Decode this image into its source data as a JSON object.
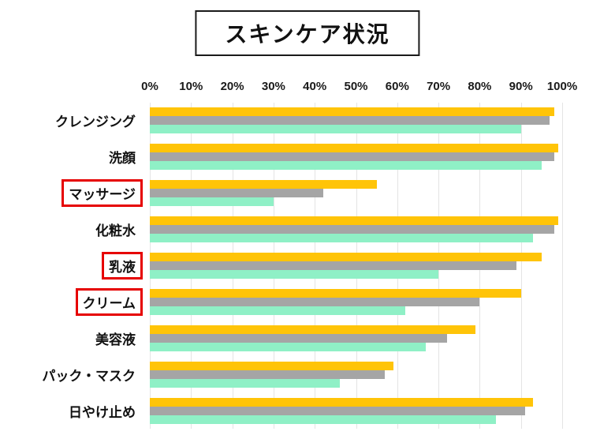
{
  "title": "スキンケア状況",
  "x_axis": {
    "tick_labels": [
      "0%",
      "10%",
      "20%",
      "30%",
      "40%",
      "50%",
      "60%",
      "70%",
      "80%",
      "90%",
      "100%"
    ]
  },
  "colors": {
    "series_yellow": "#FFC408",
    "series_gray": "#A5A5A5",
    "series_mint": "#8FF0C6",
    "highlight_box": "#E60000",
    "gridline": "#E4E4E4",
    "title_border": "#1A1A1A",
    "text": "#111111",
    "background": "#FFFFFF"
  },
  "chart_data": {
    "type": "bar",
    "orientation": "horizontal",
    "title": "スキンケア状況",
    "xlabel": "",
    "ylabel": "",
    "xlim": [
      0,
      100
    ],
    "x_tick_step": 10,
    "grid": true,
    "legend": false,
    "categories": [
      "クレンジング",
      "洗顔",
      "マッサージ",
      "化粧水",
      "乳液",
      "クリーム",
      "美容液",
      "パック・マスク",
      "日やけ止め"
    ],
    "highlighted_categories": [
      "マッサージ",
      "乳液",
      "クリーム"
    ],
    "series": [
      {
        "name": "yellow",
        "color": "#FFC408",
        "values": [
          98,
          99,
          55,
          99,
          95,
          90,
          79,
          59,
          93
        ]
      },
      {
        "name": "gray",
        "color": "#A5A5A5",
        "values": [
          97,
          98,
          42,
          98,
          89,
          80,
          72,
          57,
          91
        ]
      },
      {
        "name": "mint-green",
        "color": "#8FF0C6",
        "values": [
          90,
          95,
          30,
          93,
          70,
          62,
          67,
          46,
          84
        ]
      }
    ]
  }
}
